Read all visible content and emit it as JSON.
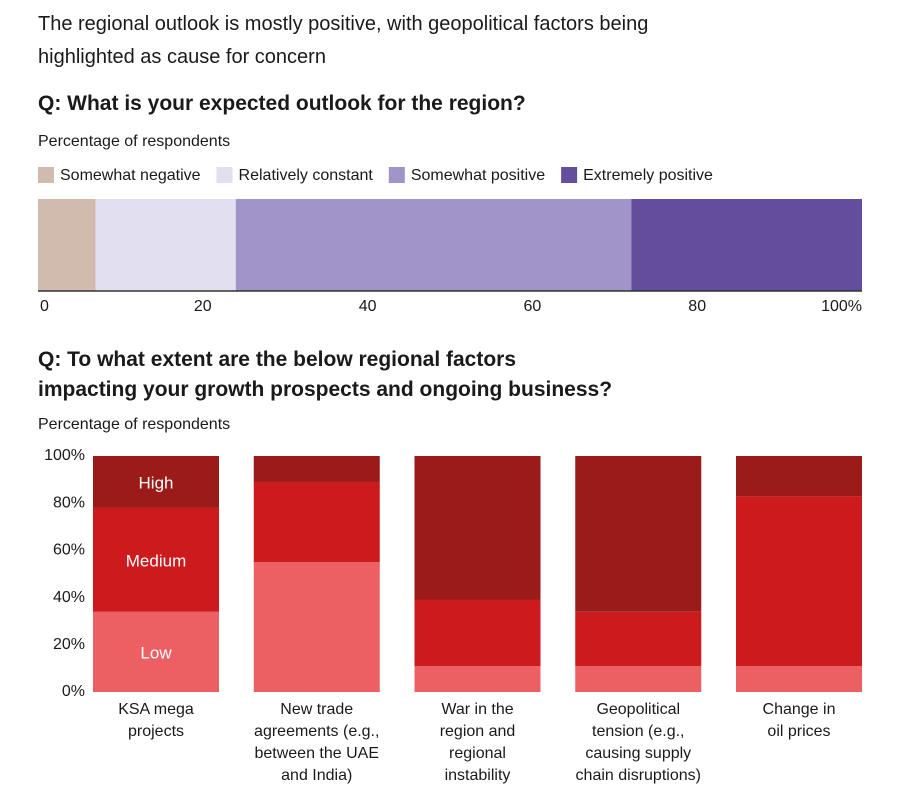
{
  "header": {
    "title": "The regional outlook is mostly positive, with geopolitical factors being\nhighlighted as cause for concern"
  },
  "chart_data": [
    {
      "type": "bar",
      "orientation": "horizontal",
      "stacked": true,
      "title": "Q: What is your expected outlook for the region?",
      "subtitle": "Percentage of respondents",
      "series": [
        {
          "name": "Somewhat negative",
          "color": "#d1bbae",
          "values": [
            7
          ]
        },
        {
          "name": "Relatively constant",
          "color": "#e2dff0",
          "values": [
            17
          ]
        },
        {
          "name": "Somewhat positive",
          "color": "#a094c8",
          "values": [
            48
          ]
        },
        {
          "name": "Extremely positive",
          "color": "#624e9c",
          "values": [
            28
          ]
        }
      ],
      "xlim": [
        0,
        100
      ],
      "xticks": [
        0,
        20,
        40,
        60,
        80,
        {
          "value": 100,
          "label": "100%"
        }
      ]
    },
    {
      "type": "bar",
      "orientation": "vertical",
      "stacked": true,
      "title": "Q: To what extent are the below regional factors\nimpacting your growth prospects and ongoing business?",
      "subtitle": "Percentage of respondents",
      "categories": [
        "KSA mega\nprojects",
        "New trade\nagreements (e.g.,\nbetween the UAE\nand India)",
        "War in the\nregion and\nregional\ninstability",
        "Geopolitical\ntension (e.g.,\ncausing supply\nchain disruptions)",
        "Change in\noil prices"
      ],
      "series": [
        {
          "name": "Low",
          "color": "#ec6064",
          "values": [
            34,
            55,
            11,
            11,
            11
          ]
        },
        {
          "name": "Medium",
          "color": "#cc1a1d",
          "values": [
            44,
            34,
            28,
            23,
            72
          ]
        },
        {
          "name": "High",
          "color": "#9b1b18",
          "values": [
            22,
            11,
            61,
            66,
            17
          ]
        }
      ],
      "ylim": [
        0,
        100
      ],
      "yticks": [
        {
          "value": 0,
          "label": "0%"
        },
        {
          "value": 20,
          "label": "20%"
        },
        {
          "value": 40,
          "label": "40%"
        },
        {
          "value": 60,
          "label": "60%"
        },
        {
          "value": 80,
          "label": "80%"
        },
        {
          "value": 100,
          "label": "100%"
        }
      ]
    }
  ]
}
